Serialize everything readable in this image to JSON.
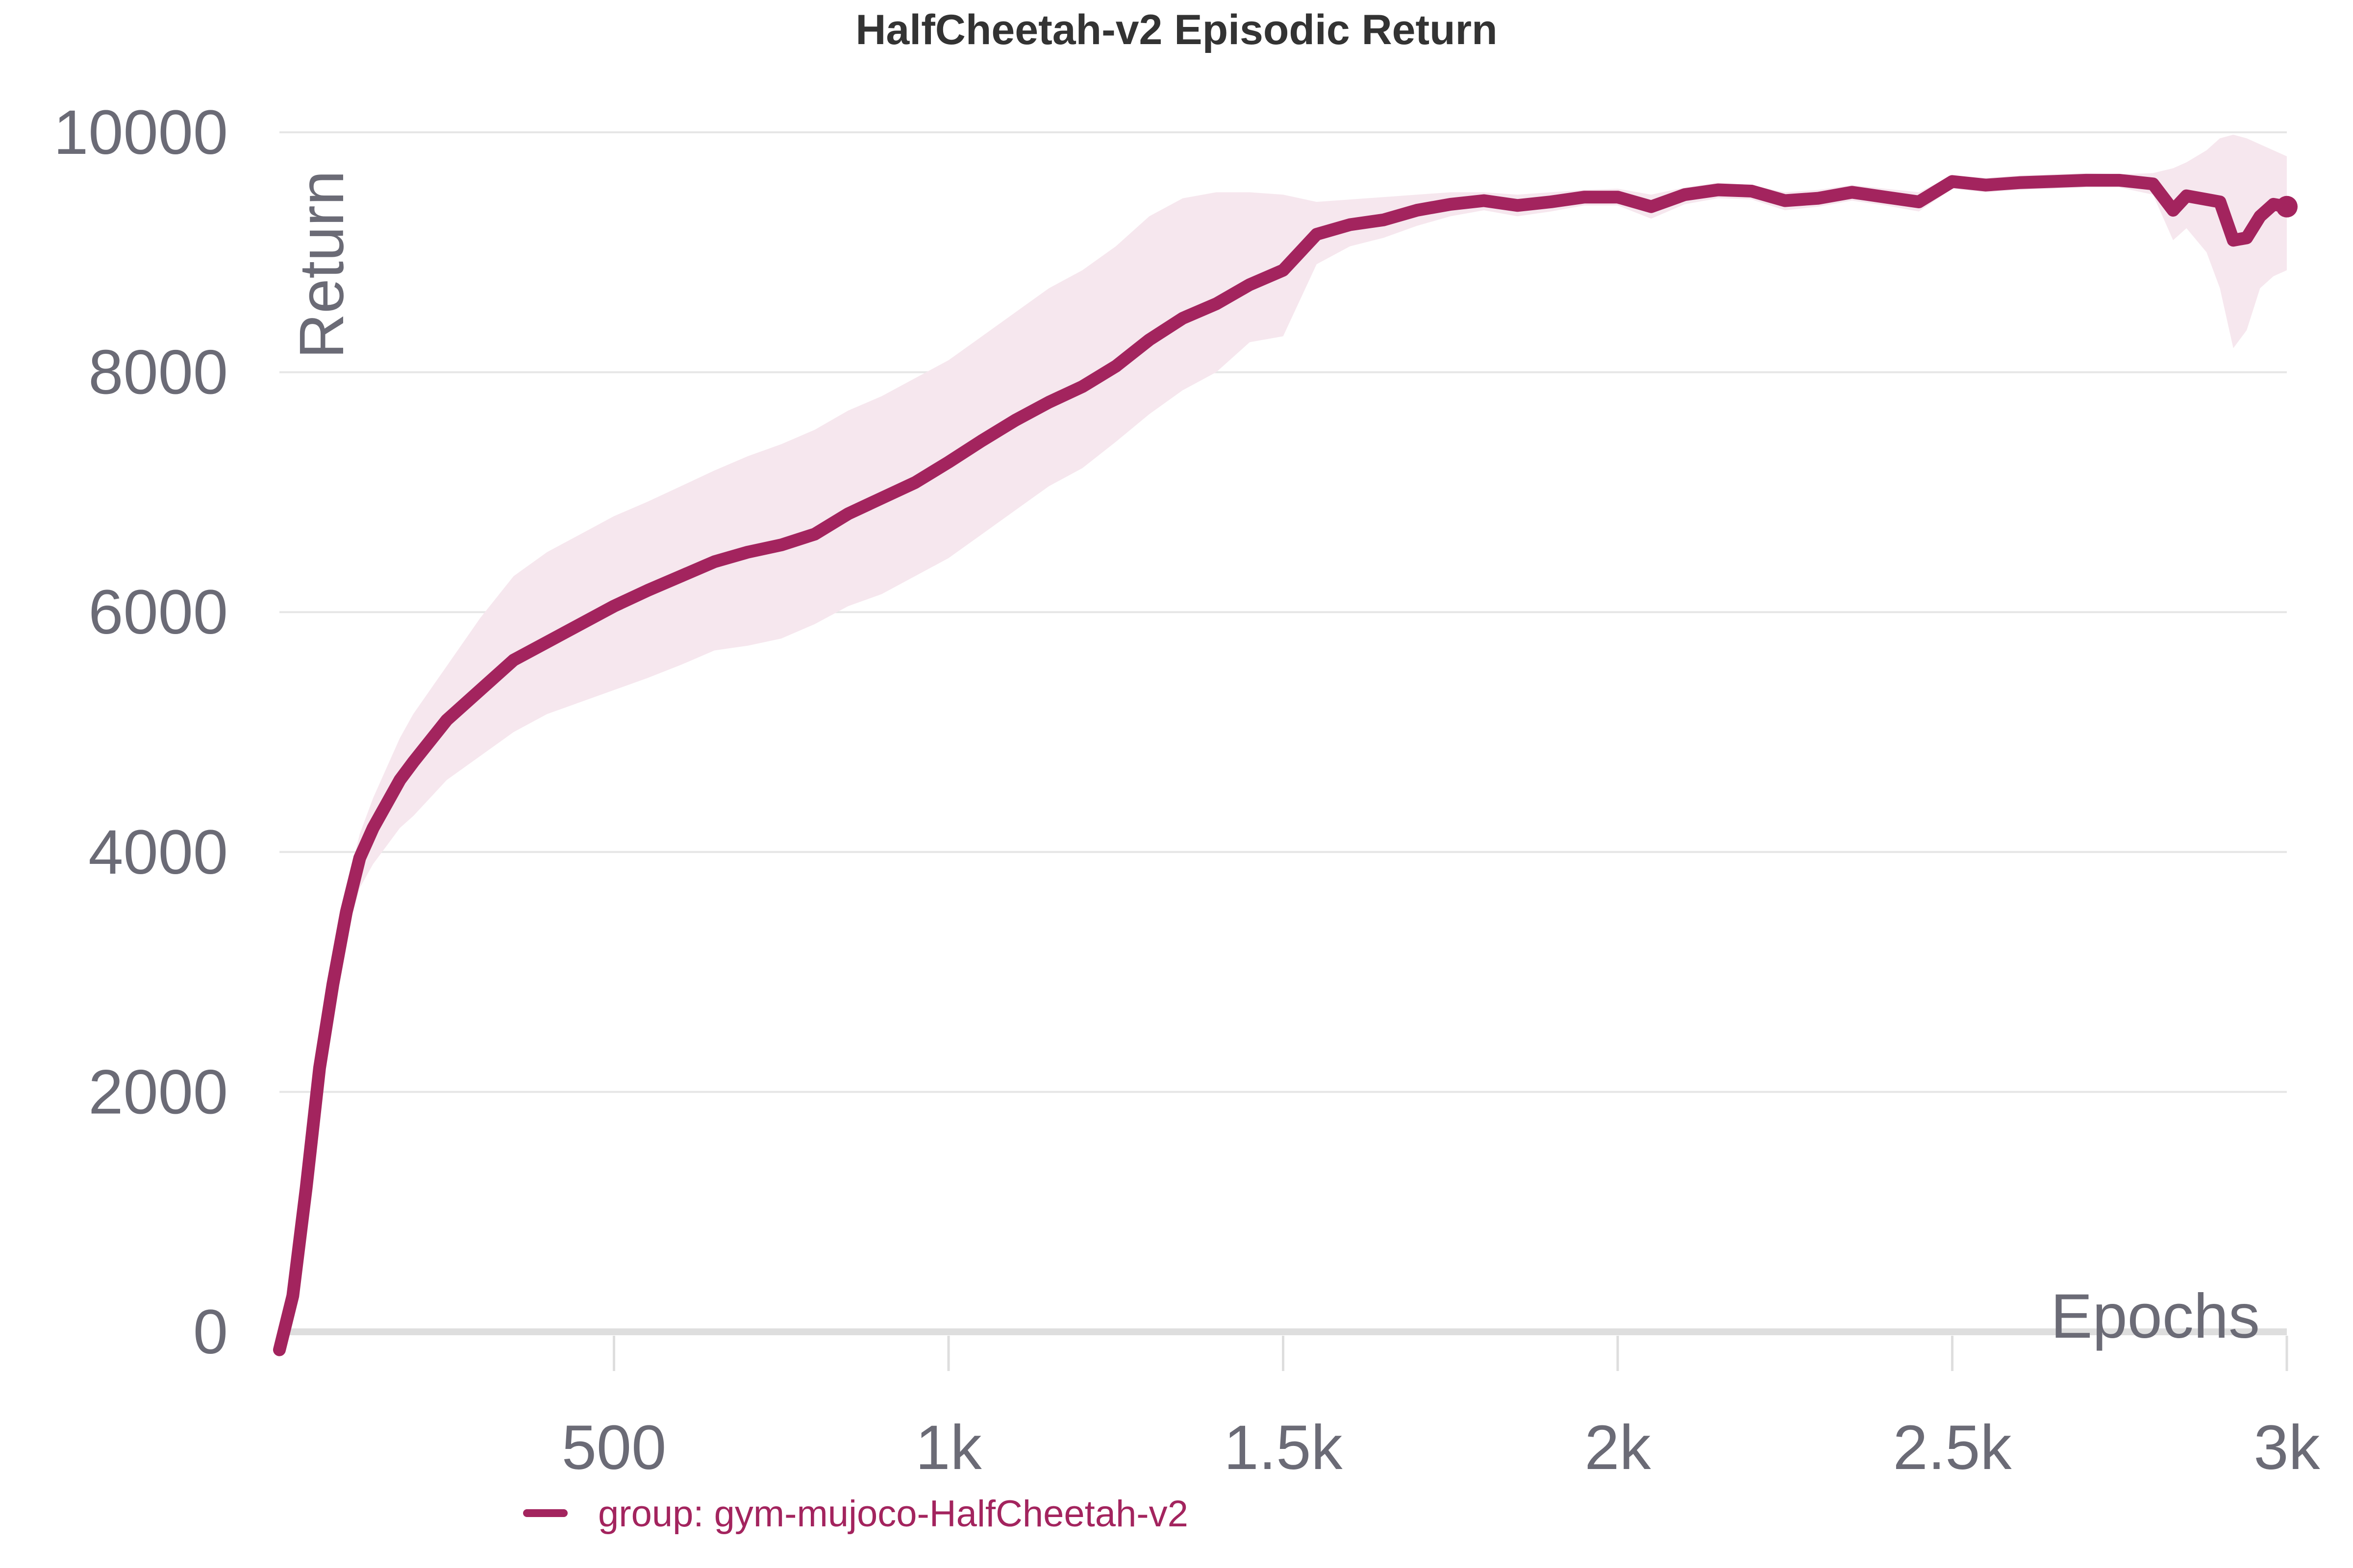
{
  "chart_data": {
    "type": "line",
    "title": "HalfCheetah-v2 Episodic Return",
    "xlabel": "Epochs",
    "ylabel": "Return",
    "xlim": [
      0,
      3000
    ],
    "ylim": [
      0,
      10000
    ],
    "x_ticks": [
      500,
      1000,
      1500,
      2000,
      2500,
      3000
    ],
    "x_tick_labels": [
      "500",
      "1k",
      "1.5k",
      "2k",
      "2.5k",
      "3k"
    ],
    "y_ticks": [
      0,
      2000,
      4000,
      6000,
      8000,
      10000
    ],
    "y_tick_labels": [
      "0",
      "2000",
      "4000",
      "6000",
      "8000",
      "10000"
    ],
    "grid": true,
    "legend_position": "bottom",
    "colors": {
      "series": "#a3245e",
      "band": "#f6e7ee",
      "grid": "#e6e6e6",
      "tick_text": "#6b6b76"
    },
    "series": [
      {
        "name": "group: gym-mujoco-HalfCheetah-v2",
        "x": [
          0,
          20,
          40,
          60,
          80,
          100,
          120,
          140,
          160,
          180,
          200,
          250,
          300,
          350,
          400,
          450,
          500,
          550,
          600,
          650,
          700,
          750,
          800,
          850,
          900,
          950,
          1000,
          1050,
          1100,
          1150,
          1200,
          1250,
          1300,
          1350,
          1400,
          1450,
          1500,
          1550,
          1600,
          1650,
          1700,
          1750,
          1800,
          1850,
          1900,
          1950,
          2000,
          2050,
          2100,
          2150,
          2200,
          2250,
          2300,
          2350,
          2400,
          2450,
          2500,
          2550,
          2600,
          2650,
          2700,
          2750,
          2800,
          2830,
          2850,
          2880,
          2900,
          2920,
          2940,
          2960,
          2980,
          3000
        ],
        "values": [
          -150,
          300,
          1200,
          2200,
          2900,
          3500,
          3950,
          4200,
          4400,
          4600,
          4750,
          5100,
          5350,
          5600,
          5750,
          5900,
          6050,
          6180,
          6300,
          6420,
          6500,
          6560,
          6650,
          6820,
          6950,
          7080,
          7250,
          7430,
          7600,
          7750,
          7880,
          8050,
          8270,
          8450,
          8570,
          8730,
          8850,
          9150,
          9230,
          9270,
          9350,
          9400,
          9430,
          9390,
          9420,
          9460,
          9460,
          9380,
          9480,
          9520,
          9510,
          9430,
          9450,
          9500,
          9460,
          9420,
          9590,
          9560,
          9580,
          9590,
          9600,
          9600,
          9570,
          9350,
          9470,
          9440,
          9420,
          9100,
          9120,
          9300,
          9400,
          9380
        ],
        "band_upper": [
          -100,
          380,
          1300,
          2350,
          3100,
          3700,
          4150,
          4450,
          4700,
          4950,
          5150,
          5550,
          5950,
          6300,
          6500,
          6650,
          6800,
          6920,
          7050,
          7180,
          7300,
          7400,
          7520,
          7680,
          7800,
          7950,
          8100,
          8300,
          8500,
          8700,
          8850,
          9050,
          9300,
          9450,
          9500,
          9500,
          9480,
          9420,
          9440,
          9460,
          9480,
          9500,
          9500,
          9480,
          9500,
          9520,
          9530,
          9480,
          9540,
          9580,
          9560,
          9500,
          9520,
          9560,
          9530,
          9500,
          9640,
          9620,
          9640,
          9650,
          9660,
          9650,
          9660,
          9700,
          9750,
          9850,
          9950,
          9980,
          9950,
          9900,
          9850,
          9800
        ],
        "band_lower": [
          -200,
          200,
          1050,
          2050,
          2700,
          3300,
          3700,
          3900,
          4050,
          4200,
          4300,
          4600,
          4800,
          5000,
          5150,
          5250,
          5350,
          5450,
          5560,
          5680,
          5720,
          5780,
          5900,
          6050,
          6150,
          6300,
          6450,
          6650,
          6850,
          7050,
          7200,
          7420,
          7650,
          7850,
          8000,
          8250,
          8300,
          8900,
          9050,
          9120,
          9220,
          9300,
          9350,
          9300,
          9340,
          9390,
          9390,
          9280,
          9400,
          9450,
          9440,
          9350,
          9380,
          9430,
          9390,
          9340,
          9530,
          9500,
          9520,
          9530,
          9540,
          9540,
          9480,
          9100,
          9200,
          9000,
          8700,
          8200,
          8350,
          8700,
          8800,
          8850
        ]
      }
    ]
  }
}
